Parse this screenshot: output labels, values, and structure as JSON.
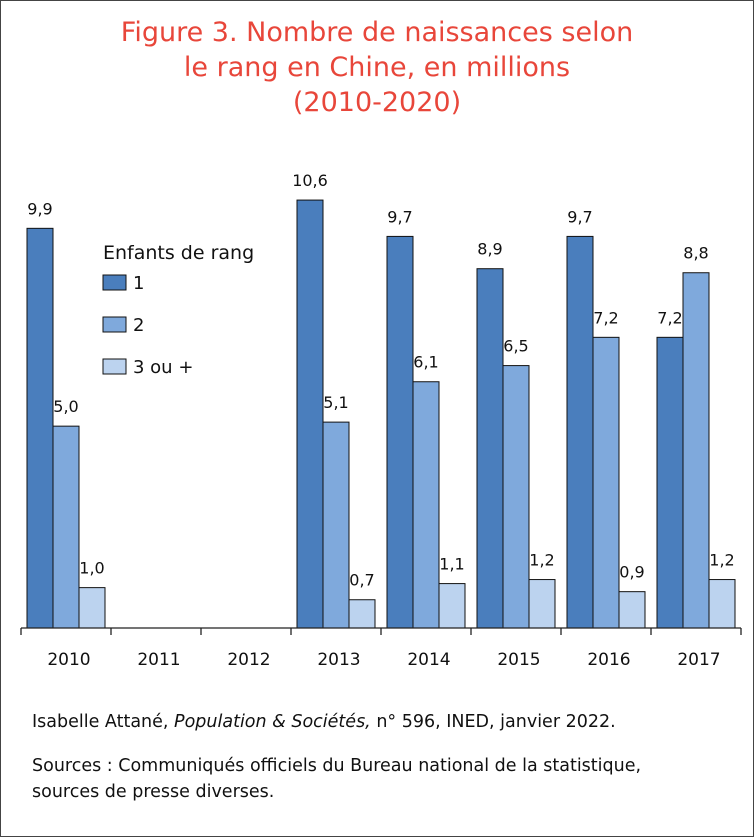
{
  "title_lines": [
    "Figure 3. Nombre de naissances selon",
    "le rang en Chine, en millions",
    "(2010-2020)"
  ],
  "legend": {
    "title": "Enfants de rang",
    "placement": "top-left inside plot"
  },
  "colors": {
    "title": "#e8463a",
    "series_1": "#4a7ebd",
    "series_2": "#7fa9dc",
    "series_3": "#bcd3ef",
    "bar_stroke": "#111111"
  },
  "chart_data": {
    "type": "bar",
    "title": "Figure 3. Nombre de naissances selon le rang en Chine, en millions (2010-2020)",
    "xlabel": "",
    "ylabel": "",
    "grid": false,
    "legend_placement": "top-left",
    "ylim": [
      0,
      11
    ],
    "categories": [
      "2010",
      "2011",
      "2012",
      "2013",
      "2014",
      "2015",
      "2016",
      "2017"
    ],
    "series": [
      {
        "name": "1",
        "values": [
          9.9,
          null,
          null,
          10.6,
          9.7,
          8.9,
          9.7,
          7.2
        ],
        "labels": [
          "9,9",
          "",
          "",
          "10,6",
          "9,7",
          "8,9",
          "9,7",
          "7,2"
        ]
      },
      {
        "name": "2",
        "values": [
          5.0,
          null,
          null,
          5.1,
          6.1,
          6.5,
          7.2,
          8.8
        ],
        "labels": [
          "5,0",
          "",
          "",
          "5,1",
          "6,1",
          "6,5",
          "7,2",
          "8,8"
        ]
      },
      {
        "name": "3 ou +",
        "values": [
          1.0,
          null,
          null,
          0.7,
          1.1,
          1.2,
          0.9,
          1.2
        ],
        "labels": [
          "1,0",
          "",
          "",
          "0,7",
          "1,1",
          "1,2",
          "0,9",
          "1,2"
        ]
      }
    ]
  },
  "footer": {
    "citation_author": "Isabelle Attané, ",
    "citation_journal": "Population & Sociétés,",
    "citation_rest": " n° 596, INED, janvier 2022.",
    "sources_line1": "Sources : Communiqués officiels du Bureau national de la statistique,",
    "sources_line2": "sources de presse diverses."
  }
}
